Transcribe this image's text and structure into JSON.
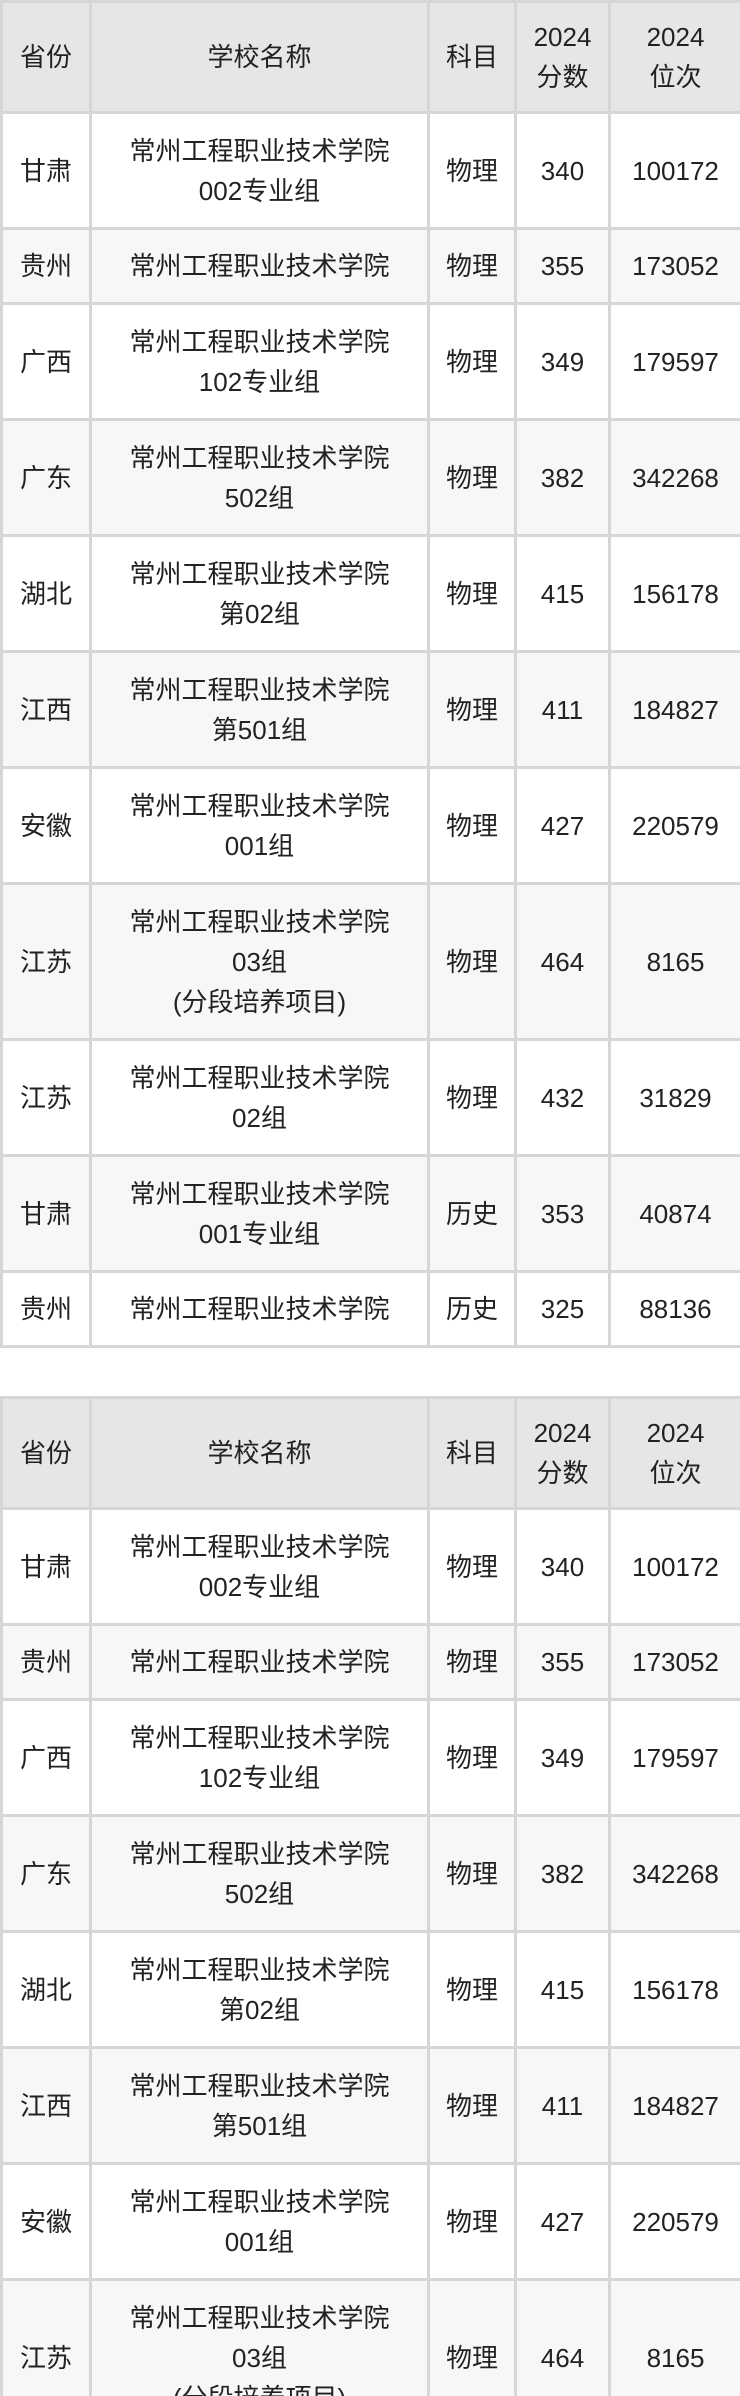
{
  "headers": [
    "省份",
    "学校名称",
    "科目",
    "2024\n分数",
    "2024\n位次"
  ],
  "table1_rows": [
    {
      "province": "甘肃",
      "school": [
        "常州工程职业技术学院",
        "002专业组"
      ],
      "subject": "物理",
      "score": "340",
      "rank": "100172"
    },
    {
      "province": "贵州",
      "school": [
        "常州工程职业技术学院"
      ],
      "subject": "物理",
      "score": "355",
      "rank": "173052"
    },
    {
      "province": "广西",
      "school": [
        "常州工程职业技术学院",
        "102专业组"
      ],
      "subject": "物理",
      "score": "349",
      "rank": "179597"
    },
    {
      "province": "广东",
      "school": [
        "常州工程职业技术学院",
        "502组"
      ],
      "subject": "物理",
      "score": "382",
      "rank": "342268"
    },
    {
      "province": "湖北",
      "school": [
        "常州工程职业技术学院",
        "第02组"
      ],
      "subject": "物理",
      "score": "415",
      "rank": "156178"
    },
    {
      "province": "江西",
      "school": [
        "常州工程职业技术学院",
        "第501组"
      ],
      "subject": "物理",
      "score": "411",
      "rank": "184827"
    },
    {
      "province": "安徽",
      "school": [
        "常州工程职业技术学院",
        "001组"
      ],
      "subject": "物理",
      "score": "427",
      "rank": "220579"
    },
    {
      "province": "江苏",
      "school": [
        "常州工程职业技术学院",
        "03组",
        "(分段培养项目)"
      ],
      "subject": "物理",
      "score": "464",
      "rank": "8165"
    },
    {
      "province": "江苏",
      "school": [
        "常州工程职业技术学院",
        "02组"
      ],
      "subject": "物理",
      "score": "432",
      "rank": "31829"
    },
    {
      "province": "甘肃",
      "school": [
        "常州工程职业技术学院",
        "001专业组"
      ],
      "subject": "历史",
      "score": "353",
      "rank": "40874"
    },
    {
      "province": "贵州",
      "school": [
        "常州工程职业技术学院"
      ],
      "subject": "历史",
      "score": "325",
      "rank": "88136"
    }
  ],
  "table2_rows": [
    {
      "province": "甘肃",
      "school": [
        "常州工程职业技术学院",
        "002专业组"
      ],
      "subject": "物理",
      "score": "340",
      "rank": "100172"
    },
    {
      "province": "贵州",
      "school": [
        "常州工程职业技术学院"
      ],
      "subject": "物理",
      "score": "355",
      "rank": "173052"
    },
    {
      "province": "广西",
      "school": [
        "常州工程职业技术学院",
        "102专业组"
      ],
      "subject": "物理",
      "score": "349",
      "rank": "179597"
    },
    {
      "province": "广东",
      "school": [
        "常州工程职业技术学院",
        "502组"
      ],
      "subject": "物理",
      "score": "382",
      "rank": "342268"
    },
    {
      "province": "湖北",
      "school": [
        "常州工程职业技术学院",
        "第02组"
      ],
      "subject": "物理",
      "score": "415",
      "rank": "156178"
    },
    {
      "province": "江西",
      "school": [
        "常州工程职业技术学院",
        "第501组"
      ],
      "subject": "物理",
      "score": "411",
      "rank": "184827"
    },
    {
      "province": "安徽",
      "school": [
        "常州工程职业技术学院",
        "001组"
      ],
      "subject": "物理",
      "score": "427",
      "rank": "220579"
    },
    {
      "province": "江苏",
      "school": [
        "常州工程职业技术学院",
        "03组",
        "(分段培养项目)"
      ],
      "subject": "物理",
      "score": "464",
      "rank": "8165"
    }
  ]
}
